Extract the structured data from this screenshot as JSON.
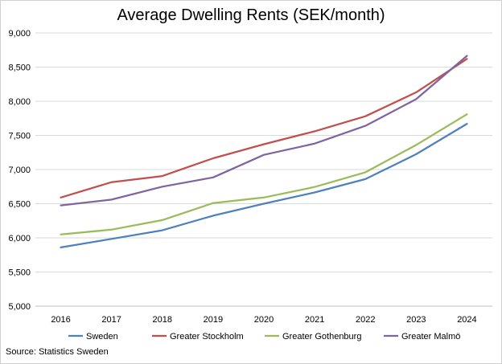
{
  "chart_data": {
    "type": "line",
    "title": "Average Dwelling Rents (SEK/month)",
    "xlabel": "",
    "ylabel": "",
    "ylim": [
      5000,
      9000
    ],
    "yticks": [
      "5,000",
      "5,500",
      "6,000",
      "6,500",
      "7,000",
      "7,500",
      "8,000",
      "8,500",
      "9,000"
    ],
    "ytick_values": [
      5000,
      5500,
      6000,
      6500,
      7000,
      7500,
      8000,
      8500,
      9000
    ],
    "categories": [
      "2016",
      "2017",
      "2018",
      "2019",
      "2020",
      "2021",
      "2022",
      "2023",
      "2024"
    ],
    "grid": true,
    "legend_position": "bottom",
    "series": [
      {
        "name": "Sweden",
        "color": "#4f81bd",
        "values": [
          5860,
          5985,
          6110,
          6325,
          6500,
          6665,
          6860,
          7225,
          7670
        ]
      },
      {
        "name": "Greater Stockholm",
        "color": "#c0504d",
        "values": [
          6590,
          6815,
          6905,
          7165,
          7370,
          7560,
          7780,
          8130,
          8620
        ]
      },
      {
        "name": "Greater Gothenburg",
        "color": "#9bbb59",
        "values": [
          6050,
          6120,
          6260,
          6510,
          6590,
          6745,
          6960,
          7360,
          7810
        ]
      },
      {
        "name": "Greater Malmö",
        "color": "#8064a2",
        "values": [
          6475,
          6560,
          6750,
          6885,
          7215,
          7380,
          7640,
          8030,
          8665
        ]
      }
    ]
  },
  "source": "Source: Statistics Sweden"
}
